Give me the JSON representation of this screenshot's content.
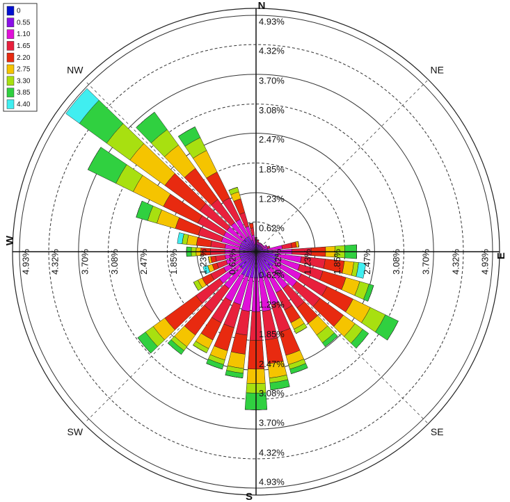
{
  "chart_data": {
    "type": "windrose",
    "compass": [
      "N",
      "NE",
      "E",
      "SE",
      "S",
      "SW",
      "W",
      "NW"
    ],
    "categories": [
      null,
      null,
      null,
      null,
      null,
      null,
      null,
      null,
      null,
      null,
      null,
      null,
      null,
      null,
      null,
      null,
      null,
      null,
      null,
      null,
      null,
      null,
      null,
      null,
      null,
      null,
      null,
      null,
      null,
      null,
      null,
      null,
      null,
      null,
      null,
      null
    ],
    "rlim": [
      0,
      4.93
    ],
    "rticks": [
      {
        "value": 0.62,
        "label": "0.62%"
      },
      {
        "value": 1.23,
        "label": "1.23%"
      },
      {
        "value": 1.85,
        "label": "1.85%"
      },
      {
        "value": 2.47,
        "label": "2.47%"
      },
      {
        "value": 3.08,
        "label": "3.08%"
      },
      {
        "value": 3.7,
        "label": "3.70%"
      },
      {
        "value": 4.32,
        "label": "4.32%"
      },
      {
        "value": 4.93,
        "label": "4.93%"
      }
    ],
    "series": [
      {
        "name": "0",
        "color": "#0010d0",
        "values": [
          0.05,
          0.05,
          0.05,
          0.05,
          0.05,
          0.05,
          0.05,
          0.05,
          0.05,
          0.05,
          0.05,
          0.05,
          0.05,
          0.05,
          0.05,
          0.05,
          0.05,
          0.05,
          0.05,
          0.05,
          0.05,
          0.05,
          0.05,
          0.05,
          0.05,
          0.05,
          0.05,
          0.05,
          0.05,
          0.05,
          0.05,
          0.05,
          0.05,
          0.05,
          0.05,
          0.05
        ]
      },
      {
        "name": "0.55",
        "color": "#8a10e8",
        "values": [
          0.1,
          0.1,
          0.1,
          0.1,
          0.1,
          0.1,
          0.1,
          0.1,
          0.2,
          0.3,
          0.4,
          0.4,
          0.4,
          0.4,
          0.4,
          0.4,
          0.5,
          0.5,
          0.5,
          0.5,
          0.5,
          0.5,
          0.4,
          0.4,
          0.3,
          0.3,
          0.3,
          0.3,
          0.3,
          0.3,
          0.3,
          0.3,
          0.3,
          0.3,
          0.2,
          0.1
        ]
      },
      {
        "name": "1.10",
        "color": "#e010d8",
        "values": [
          0.1,
          0.05,
          0.05,
          0.05,
          0.05,
          0.05,
          0.1,
          0.1,
          0.3,
          0.4,
          0.5,
          0.5,
          0.6,
          0.6,
          0.5,
          0.5,
          0.6,
          0.7,
          0.7,
          0.7,
          0.6,
          0.6,
          0.5,
          0.5,
          0.4,
          0.3,
          0.3,
          0.3,
          0.3,
          0.4,
          0.4,
          0.4,
          0.4,
          0.4,
          0.3,
          0.2
        ]
      },
      {
        "name": "1.65",
        "color": "#e8203c",
        "values": [
          0.05,
          0.05,
          0,
          0,
          0,
          0,
          0,
          0.05,
          0.2,
          0.4,
          0.5,
          0.5,
          0.6,
          0.6,
          0.5,
          0.4,
          0.6,
          0.6,
          0.6,
          0.5,
          0.5,
          0.5,
          0.6,
          0.6,
          0.3,
          0.2,
          0.2,
          0.3,
          0.3,
          0.5,
          0.6,
          0.7,
          0.6,
          0.5,
          0.3,
          0.15
        ]
      },
      {
        "name": "2.20",
        "color": "#e82a10",
        "values": [
          0,
          0,
          0,
          0,
          0,
          0,
          0,
          0,
          0.1,
          0.3,
          0.4,
          0.5,
          0.6,
          0.6,
          0.4,
          0.3,
          0.5,
          0.5,
          0.6,
          0.4,
          0.5,
          0.4,
          0.6,
          0.8,
          0.2,
          0.1,
          0.1,
          0.2,
          0.3,
          0.5,
          0.8,
          0.9,
          0.8,
          0.6,
          0.3,
          0.1
        ]
      },
      {
        "name": "2.75",
        "color": "#f5c400",
        "values": [
          0,
          0,
          0,
          0,
          0,
          0,
          0,
          0,
          0.05,
          0.2,
          0.2,
          0.3,
          0.4,
          0.3,
          0.3,
          0.15,
          0.2,
          0.3,
          0.3,
          0.3,
          0.2,
          0.2,
          0.3,
          0.3,
          0.1,
          0.1,
          0.05,
          0.1,
          0.2,
          0.4,
          0.7,
          0.9,
          0.6,
          0.5,
          0.15,
          0
        ]
      },
      {
        "name": "3.30",
        "color": "#a8e010",
        "values": [
          0,
          0,
          0,
          0,
          0,
          0,
          0,
          0,
          0,
          0.2,
          0.1,
          0.2,
          0.35,
          0.2,
          0.2,
          0.1,
          0.1,
          0.1,
          0.2,
          0.1,
          0.1,
          0.1,
          0.1,
          0.2,
          0.1,
          0,
          0,
          0.1,
          0.1,
          0.2,
          0.4,
          0.6,
          0.4,
          0.3,
          0.1,
          0
        ]
      },
      {
        "name": "3.85",
        "color": "#30d040",
        "values": [
          0,
          0,
          0,
          0,
          0,
          0,
          0,
          0,
          0,
          0.25,
          0,
          0.1,
          0.3,
          0.15,
          0.1,
          0,
          0.1,
          0.15,
          0.35,
          0.1,
          0.1,
          0,
          0.1,
          0.2,
          0,
          0,
          0,
          0.1,
          0,
          0.25,
          0.65,
          0.7,
          0.45,
          0.25,
          0,
          0
        ]
      },
      {
        "name": "4.40",
        "color": "#40eef0",
        "values": [
          0,
          0,
          0,
          0,
          0,
          0,
          0,
          0,
          0,
          0,
          0.15,
          0,
          0,
          0,
          0,
          0,
          0,
          0,
          0,
          0,
          0,
          0,
          0,
          0,
          0,
          0.1,
          0,
          0,
          0.1,
          0,
          0,
          0.35,
          0,
          0,
          0,
          0
        ]
      }
    ]
  }
}
